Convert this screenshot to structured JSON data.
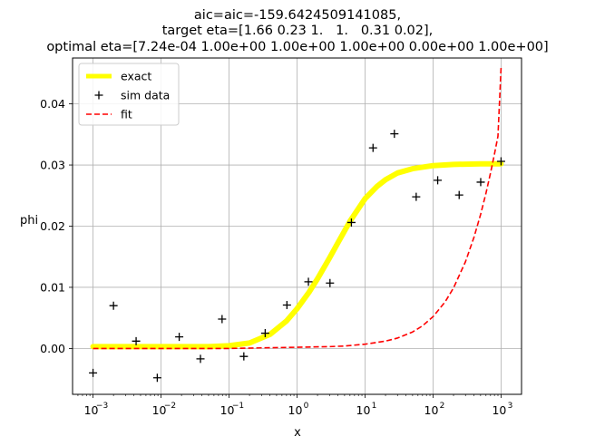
{
  "chart_data": {
    "type": "line",
    "title": [
      "aic=aic=-159.6424509141085,",
      "target eta=[1.66 0.23 1.   1.   0.31 0.02],",
      "optimal eta=[7.24e-04 1.00e+00 1.00e+00 1.00e+00 0.00e+00 1.00e+00]"
    ],
    "xlabel": "x",
    "ylabel": "phi",
    "xscale": "log",
    "xlim": [
      0.0005,
      2000
    ],
    "ylim": [
      -0.0075,
      0.0475
    ],
    "grid": true,
    "legend_position": "upper-left",
    "x_ticks": [
      {
        "value": 0.001,
        "base": "10",
        "exp": "−3"
      },
      {
        "value": 0.01,
        "base": "10",
        "exp": "−2"
      },
      {
        "value": 0.1,
        "base": "10",
        "exp": "−1"
      },
      {
        "value": 1,
        "base": "10",
        "exp": "0"
      },
      {
        "value": 10,
        "base": "10",
        "exp": "1"
      },
      {
        "value": 100,
        "base": "10",
        "exp": "2"
      },
      {
        "value": 1000,
        "base": "10",
        "exp": "3"
      }
    ],
    "y_ticks": [
      {
        "value": 0.0,
        "label": "0.00"
      },
      {
        "value": 0.01,
        "label": "0.01"
      },
      {
        "value": 0.02,
        "label": "0.02"
      },
      {
        "value": 0.03,
        "label": "0.03"
      },
      {
        "value": 0.04,
        "label": "0.04"
      }
    ],
    "series": [
      {
        "name": "exact",
        "style": "solid-thick",
        "color": "#ffff00",
        "x": [
          0.001,
          0.01,
          0.05,
          0.1,
          0.2,
          0.4,
          0.7,
          1,
          1.5,
          2,
          3,
          4,
          6,
          10,
          15,
          20,
          30,
          50,
          100,
          200,
          500,
          1000
        ],
        "y": [
          0.0003,
          0.0003,
          0.0003,
          0.00045,
          0.0009,
          0.0023,
          0.0045,
          0.0065,
          0.0092,
          0.0114,
          0.0148,
          0.0173,
          0.0208,
          0.0245,
          0.0265,
          0.0276,
          0.0287,
          0.0294,
          0.0299,
          0.0301,
          0.0302,
          0.0302
        ]
      },
      {
        "name": "sim data",
        "style": "marker-plus",
        "color": "#000000",
        "x": [
          0.001,
          0.002,
          0.0043,
          0.0088,
          0.0185,
          0.038,
          0.079,
          0.165,
          0.34,
          0.71,
          1.47,
          3.05,
          6.3,
          13.1,
          27,
          56.5,
          117,
          242,
          502,
          1000
        ],
        "y": [
          -0.004,
          0.007,
          0.0012,
          -0.0048,
          0.0019,
          -0.0017,
          0.0048,
          -0.0013,
          0.0025,
          0.0071,
          0.0109,
          0.0107,
          0.0206,
          0.0328,
          0.0351,
          0.0248,
          0.0275,
          0.0251,
          0.0272,
          0.0306
        ]
      },
      {
        "name": "fit",
        "style": "dashed",
        "color": "#ff0000",
        "x": [
          0.001,
          0.01,
          0.1,
          1,
          3,
          5,
          10,
          20,
          30,
          50,
          70,
          100,
          150,
          200,
          300,
          400,
          500,
          600,
          700,
          800,
          900,
          1000
        ],
        "y": [
          0.0,
          0.0,
          0.0,
          0.0002,
          0.0003,
          0.0004,
          0.0007,
          0.0012,
          0.0017,
          0.0027,
          0.0037,
          0.0052,
          0.0076,
          0.0099,
          0.0142,
          0.0182,
          0.0219,
          0.0254,
          0.0287,
          0.0318,
          0.0347,
          0.0459
        ]
      }
    ]
  }
}
